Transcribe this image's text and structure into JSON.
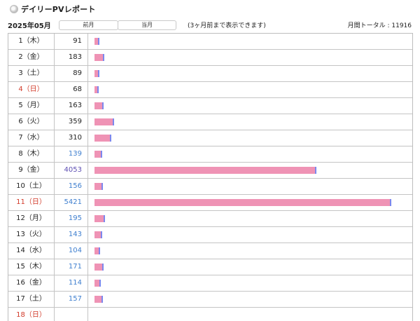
{
  "header": {
    "title": "デイリーPVレポート"
  },
  "nav": {
    "month": "2025年05月",
    "prev_label": "前月",
    "current_label": "当月",
    "note": "(3ヶ月前まで表示できます)",
    "total_label": "月間トータル : 11916"
  },
  "colors": {
    "bar_main": "#ef93b5",
    "bar_accent": "#7b88ee",
    "sunday_text": "#d23b2a",
    "link_blue": "#3f7fcf",
    "purple": "#5e4fb3"
  },
  "scale_max": 5421,
  "rows": [
    {
      "day": "1（木）",
      "pv": "91",
      "value": 91,
      "day_style": "normal",
      "pv_style": "black"
    },
    {
      "day": "2（金）",
      "pv": "183",
      "value": 183,
      "day_style": "normal",
      "pv_style": "black"
    },
    {
      "day": "3（土）",
      "pv": "89",
      "value": 89,
      "day_style": "normal",
      "pv_style": "black"
    },
    {
      "day": "4（日）",
      "pv": "68",
      "value": 68,
      "day_style": "sun",
      "pv_style": "black"
    },
    {
      "day": "5（月）",
      "pv": "163",
      "value": 163,
      "day_style": "normal",
      "pv_style": "black"
    },
    {
      "day": "6（火）",
      "pv": "359",
      "value": 359,
      "day_style": "normal",
      "pv_style": "black"
    },
    {
      "day": "7（水）",
      "pv": "310",
      "value": 310,
      "day_style": "normal",
      "pv_style": "black"
    },
    {
      "day": "8（木）",
      "pv": "139",
      "value": 139,
      "day_style": "normal",
      "pv_style": "blue"
    },
    {
      "day": "9（金）",
      "pv": "4053",
      "value": 4053,
      "day_style": "normal",
      "pv_style": "purple"
    },
    {
      "day": "10（土）",
      "pv": "156",
      "value": 156,
      "day_style": "normal",
      "pv_style": "blue"
    },
    {
      "day": "11（日）",
      "pv": "5421",
      "value": 5421,
      "day_style": "sun",
      "pv_style": "blue"
    },
    {
      "day": "12（月）",
      "pv": "195",
      "value": 195,
      "day_style": "normal",
      "pv_style": "blue"
    },
    {
      "day": "13（火）",
      "pv": "143",
      "value": 143,
      "day_style": "normal",
      "pv_style": "blue"
    },
    {
      "day": "14（水）",
      "pv": "104",
      "value": 104,
      "day_style": "normal",
      "pv_style": "blue"
    },
    {
      "day": "15（木）",
      "pv": "171",
      "value": 171,
      "day_style": "normal",
      "pv_style": "blue"
    },
    {
      "day": "16（金）",
      "pv": "114",
      "value": 114,
      "day_style": "normal",
      "pv_style": "blue"
    },
    {
      "day": "17（土）",
      "pv": "157",
      "value": 157,
      "day_style": "normal",
      "pv_style": "blue"
    },
    {
      "day": "18（日）",
      "pv": "",
      "value": 0,
      "day_style": "sun",
      "pv_style": "blue"
    }
  ]
}
